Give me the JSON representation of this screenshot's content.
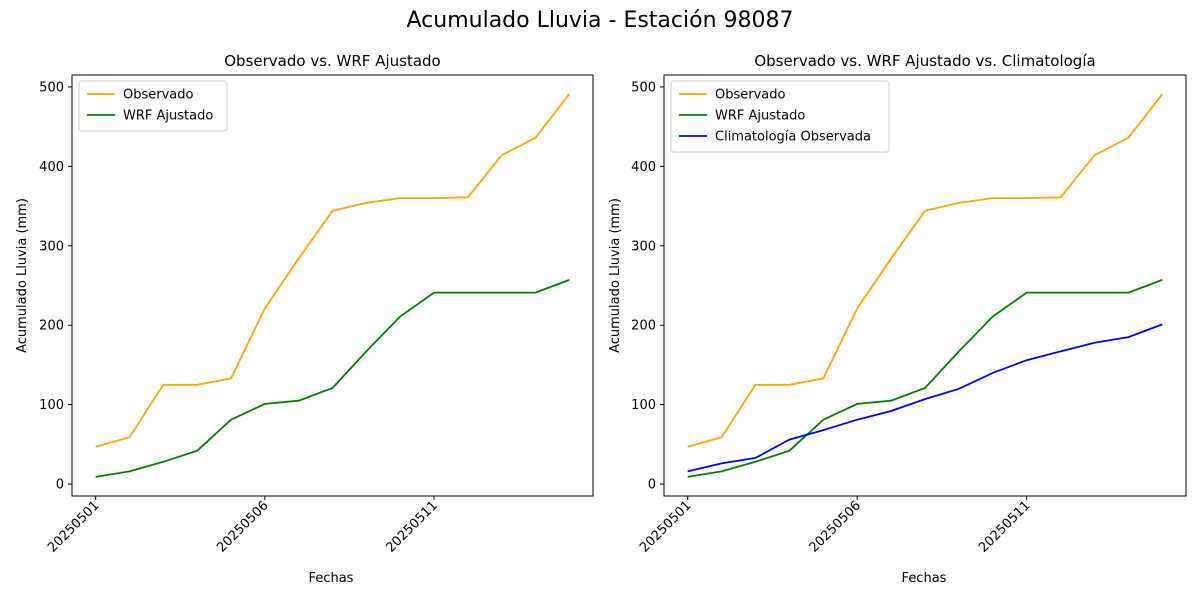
{
  "figure": {
    "title": "Acumulado Lluvia - Estación 98087"
  },
  "chart_data": [
    {
      "type": "line",
      "title": "Observado vs. WRF Ajustado",
      "xlabel": "Fechas",
      "ylabel": "Acumulado Lluvia (mm)",
      "x": [
        20250501,
        20250502,
        20250503,
        20250504,
        20250505,
        20250506,
        20250507,
        20250508,
        20250509,
        20250510,
        20250511,
        20250512,
        20250513,
        20250514,
        20250515
      ],
      "xticks": [
        "20250501",
        "20250506",
        "20250511"
      ],
      "yticks": [
        0,
        100,
        200,
        300,
        400,
        500
      ],
      "ylim": [
        -15,
        515
      ],
      "legend_position": "upper-left",
      "grid": false,
      "series": [
        {
          "name": "Observado",
          "color": "#ffa500",
          "values": [
            47,
            59,
            125,
            125,
            133,
            221,
            284,
            344,
            354,
            360,
            360,
            361,
            414,
            436,
            491
          ]
        },
        {
          "name": "WRF Ajustado",
          "color": "#008000",
          "values": [
            9,
            16,
            28,
            42,
            81,
            101,
            105,
            121,
            167,
            211,
            241,
            241,
            241,
            241,
            257
          ]
        }
      ]
    },
    {
      "type": "line",
      "title": "Observado vs. WRF Ajustado vs. Climatología",
      "xlabel": "Fechas",
      "ylabel": "Acumulado Lluvia (mm)",
      "x": [
        20250501,
        20250502,
        20250503,
        20250504,
        20250505,
        20250506,
        20250507,
        20250508,
        20250509,
        20250510,
        20250511,
        20250512,
        20250513,
        20250514,
        20250515
      ],
      "xticks": [
        "20250501",
        "20250506",
        "20250511"
      ],
      "yticks": [
        0,
        100,
        200,
        300,
        400,
        500
      ],
      "ylim": [
        -15,
        515
      ],
      "legend_position": "upper-left",
      "grid": false,
      "series": [
        {
          "name": "Observado",
          "color": "#ffa500",
          "values": [
            47,
            59,
            125,
            125,
            133,
            221,
            284,
            344,
            354,
            360,
            360,
            361,
            414,
            436,
            491
          ]
        },
        {
          "name": "WRF Ajustado",
          "color": "#008000",
          "values": [
            9,
            16,
            28,
            42,
            81,
            101,
            105,
            121,
            167,
            211,
            241,
            241,
            241,
            241,
            257
          ]
        },
        {
          "name": "Climatología Observada",
          "color": "#0000ff",
          "values": [
            16,
            26,
            33,
            56,
            68,
            81,
            92,
            107,
            120,
            140,
            156,
            167,
            178,
            185,
            201
          ]
        }
      ]
    }
  ]
}
